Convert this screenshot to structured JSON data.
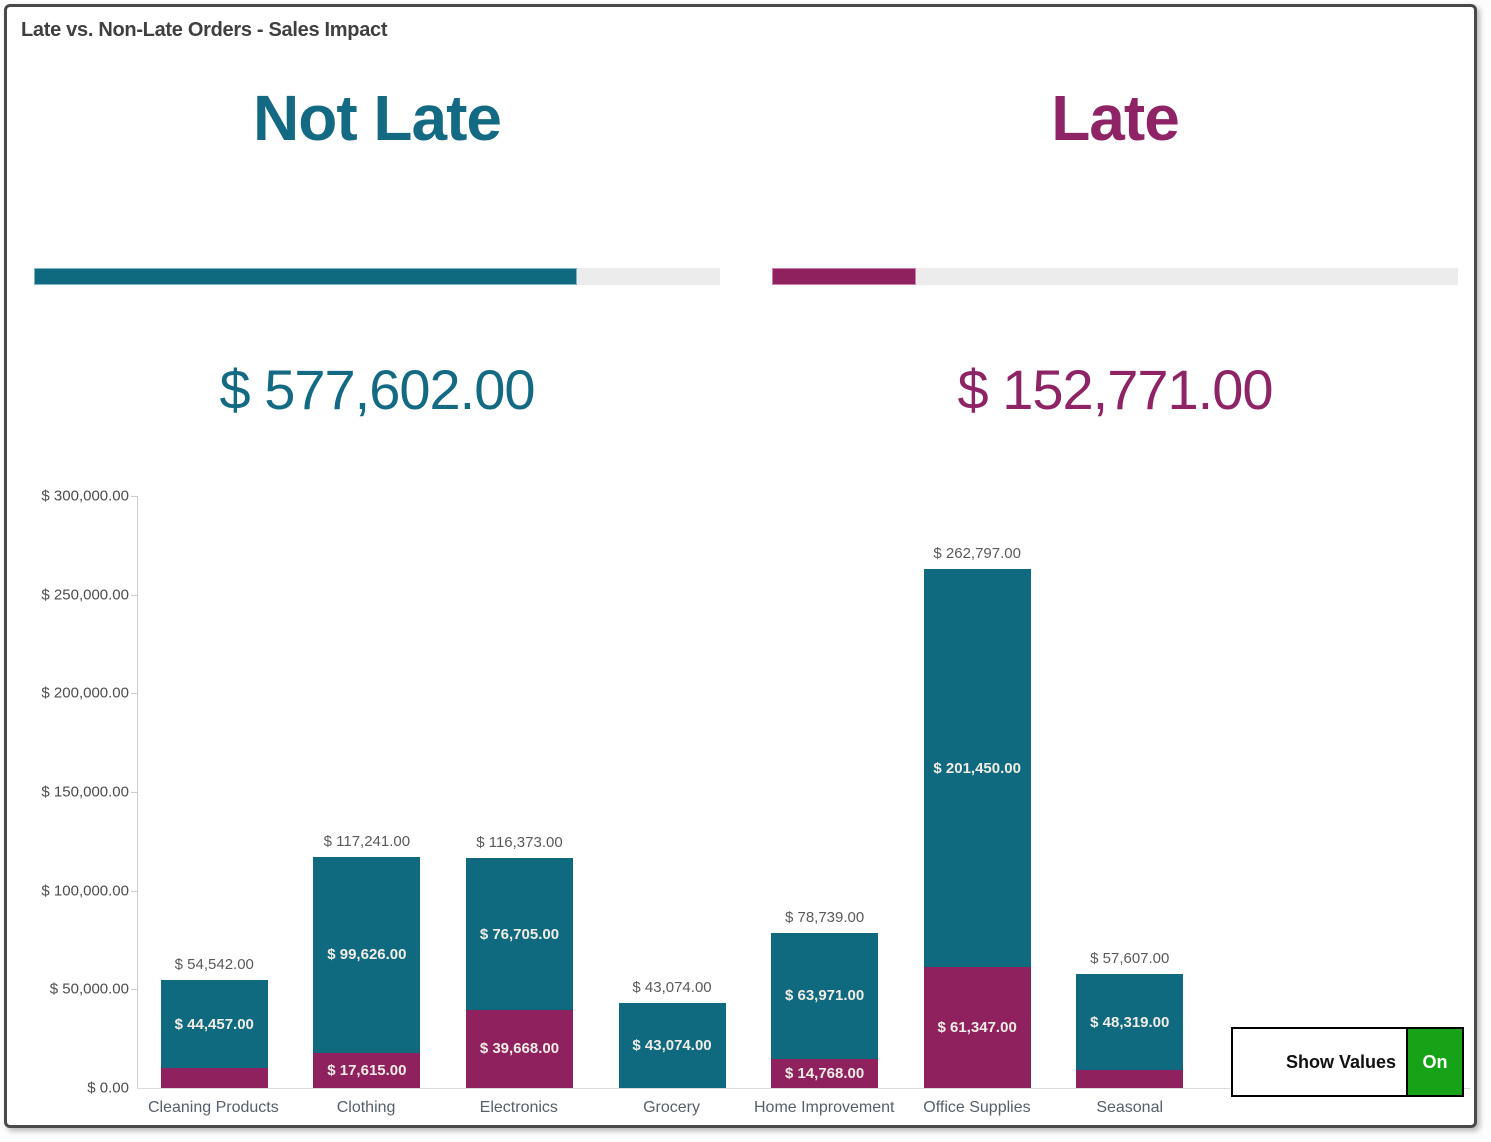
{
  "window": {
    "title": "Late vs. Non-Late Orders - Sales Impact"
  },
  "kpis": [
    {
      "id": "not_late",
      "label": "Not Late",
      "value": "$ 577,602.00",
      "color": "#0F6A80",
      "text_color": "#136A82",
      "progress_border": "#7EB5C6",
      "progress_pct": 79.1
    },
    {
      "id": "late",
      "label": "Late",
      "value": "$ 152,771.00",
      "color": "#8E215E",
      "text_color": "#8E2465",
      "progress_border": "#CC7FAE",
      "progress_pct": 21.0
    }
  ],
  "chart_data": {
    "type": "bar",
    "stacked": true,
    "title": "Late vs. Non-Late Orders - Sales Impact",
    "xlabel": "",
    "ylabel": "",
    "ylim": [
      0,
      300000
    ],
    "grid": false,
    "legend": false,
    "categories": [
      "Cleaning Products",
      "Clothing",
      "Electronics",
      "Grocery",
      "Home Improvement",
      "Office Supplies",
      "Seasonal"
    ],
    "series": [
      {
        "name": "Late",
        "color": "#8E215E",
        "values": [
          10085,
          17615,
          39668,
          0,
          14768,
          61347,
          9288
        ],
        "labels": [
          null,
          "$ 17,615.00",
          "$ 39,668.00",
          null,
          "$ 14,768.00",
          "$ 61,347.00",
          null
        ]
      },
      {
        "name": "Not Late",
        "color": "#0F6A80",
        "values": [
          44457,
          99626,
          76705,
          43074,
          63971,
          201450,
          48319
        ],
        "labels": [
          "$ 44,457.00",
          "$ 99,626.00",
          "$ 76,705.00",
          "$ 43,074.00",
          "$ 63,971.00",
          "$ 201,450.00",
          "$ 48,319.00"
        ]
      }
    ],
    "totals": [
      54542,
      117241,
      116373,
      43074,
      78739,
      262797,
      57607
    ],
    "total_labels": [
      "$ 54,542.00",
      "$ 117,241.00",
      "$ 116,373.00",
      "$ 43,074.00",
      "$ 78,739.00",
      "$ 262,797.00",
      "$ 57,607.00"
    ],
    "yticks": [
      "$ 300,000.00",
      "$ 250,000.00",
      "$ 200,000.00",
      "$ 150,000.00",
      "$ 100,000.00",
      "$ 50,000.00",
      "$ 0.00"
    ]
  },
  "toolbar": {
    "show_values_label": "Show Values",
    "toggle_state": "On",
    "toggle_color": "#17A317"
  }
}
